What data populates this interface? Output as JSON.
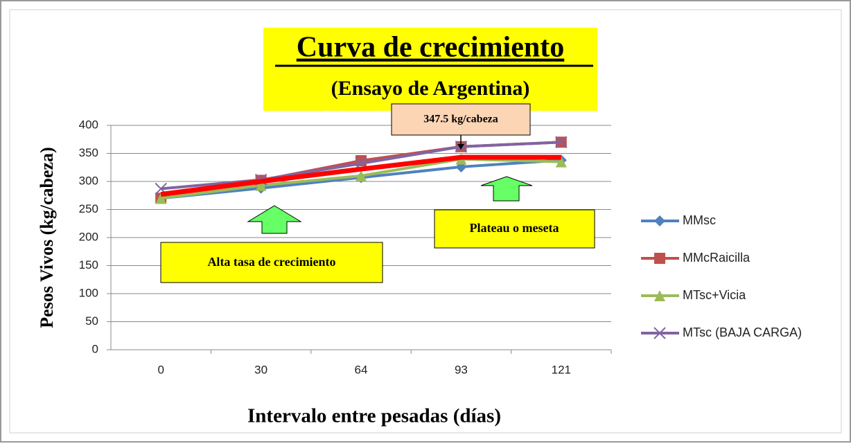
{
  "chart_data": {
    "type": "line",
    "title": "Curva de crecimiento",
    "subtitle": "(Ensayo de Argentina)",
    "x_label": "Intervalo entre pesadas (días)",
    "y_label": "Pesos Vivos (kg/cabeza)",
    "categories": [
      "0",
      "30",
      "64",
      "93",
      "121"
    ],
    "series": [
      {
        "name": "MMsc",
        "color": "#4f81bd",
        "marker": "diamond",
        "values": [
          270,
          288,
          307,
          326,
          338
        ]
      },
      {
        "name": "MMcRaicilla",
        "color": "#c0504d",
        "marker": "square",
        "values": [
          270,
          302,
          337,
          362,
          370
        ]
      },
      {
        "name": "MTsc+Vicia",
        "color": "#9bbb59",
        "marker": "triangle",
        "values": [
          270,
          293,
          310,
          340,
          335
        ]
      },
      {
        "name": "MTsc (BAJA CARGA)",
        "color": "#8064a2",
        "marker": "x",
        "values": [
          287,
          303,
          332,
          362,
          370
        ]
      }
    ],
    "trend_line": {
      "color": "#ff0000",
      "values": [
        277,
        300,
        322,
        343,
        343
      ]
    },
    "annotations": [
      "347.5 kg/cabeza",
      "Alta tasa de crecimiento",
      "Plateau o meseta"
    ],
    "ylim": [
      0,
      400
    ],
    "yticks": [
      0,
      50,
      100,
      150,
      200,
      250,
      300,
      350,
      400
    ],
    "grid": true,
    "legend": "right"
  }
}
